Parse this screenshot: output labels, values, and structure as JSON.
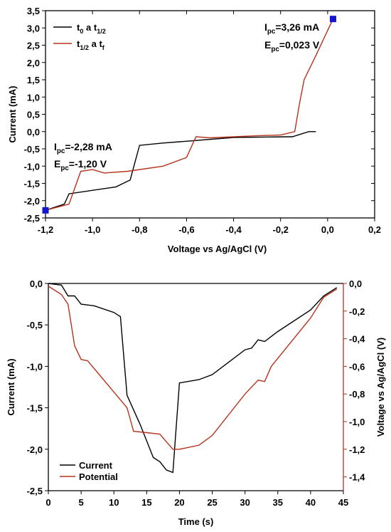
{
  "chart_data": [
    {
      "type": "line",
      "xlabel": "Voltage vs Ag/AgCl (V)",
      "ylabel": "Current (mA)",
      "xlim": [
        -1.2,
        0.2
      ],
      "ylim": [
        -2.5,
        3.5
      ],
      "xticks": [
        -1.2,
        -1.0,
        -0.8,
        -0.6,
        -0.4,
        -0.2,
        0.0,
        0.2
      ],
      "xtick_labels": [
        "-1,2",
        "-1,0",
        "-0,8",
        "-0,6",
        "-0,4",
        "-0,2",
        "0,0",
        "0,2"
      ],
      "yticks": [
        -2.5,
        -2.0,
        -1.5,
        -1.0,
        -0.5,
        0.0,
        0.5,
        1.0,
        1.5,
        2.0,
        2.5,
        3.0,
        3.5
      ],
      "ytick_labels": [
        "-2,5",
        "-2,0",
        "-1,5",
        "-1,0",
        "-0,5",
        "0,0",
        "0,5",
        "1,0",
        "1,5",
        "2,0",
        "2,5",
        "3,0",
        "3,5"
      ],
      "legend": [
        {
          "main": "t",
          "sub1": "0",
          "mid": " a t",
          "sub2": "1/2",
          "color": "#000000"
        },
        {
          "main": "t",
          "sub1": "1/2",
          "mid": " a t",
          "sub2": "f",
          "color": "#b5331a"
        }
      ],
      "series": [
        {
          "color": "#000000",
          "x": [
            -0.05,
            -0.08,
            -0.15,
            -0.4,
            -0.6,
            -0.7,
            -0.8,
            -0.84,
            -0.9,
            -1.1,
            -1.12,
            -1.2
          ],
          "y": [
            0.0,
            0.0,
            -0.15,
            -0.17,
            -0.28,
            -0.33,
            -0.4,
            -1.4,
            -1.6,
            -1.8,
            -2.1,
            -2.28
          ]
        },
        {
          "color": "#b5331a",
          "x": [
            -1.2,
            -1.1,
            -1.05,
            -1.0,
            -0.95,
            -0.85,
            -0.7,
            -0.6,
            -0.56,
            -0.5,
            -0.3,
            -0.2,
            -0.14,
            -0.12,
            -0.1,
            -0.05,
            0.023
          ],
          "y": [
            -2.28,
            -2.1,
            -1.15,
            -1.1,
            -1.2,
            -1.15,
            -1.0,
            -0.75,
            -0.15,
            -0.18,
            -0.12,
            -0.1,
            0.0,
            0.8,
            1.5,
            2.2,
            3.26
          ]
        }
      ],
      "markers": [
        {
          "x": 0.023,
          "y": 3.26,
          "color": "#1515d0"
        },
        {
          "x": -1.2,
          "y": -2.28,
          "color": "#1515d0"
        }
      ],
      "annotations": [
        {
          "line1": {
            "main": "I",
            "sub": "pc",
            "rest": "=3,26 mA"
          },
          "line2": {
            "main": "E",
            "sub": "pc",
            "rest": "=0,023 V"
          }
        },
        {
          "line1": {
            "main": "I",
            "sub": "pc",
            "rest": "=-2,28 mA"
          },
          "line2": {
            "main": "E",
            "sub": "pc",
            "rest": "=-1,20 V"
          }
        }
      ]
    },
    {
      "type": "line",
      "xlabel": "Time (s)",
      "ylabel": "Current (mA)",
      "y2label": "Voltage vs Ag/AgCl (V)",
      "xlim": [
        0,
        45
      ],
      "ylim": [
        -2.5,
        0.0
      ],
      "y2lim": [
        -1.5,
        0.0
      ],
      "xticks": [
        0,
        5,
        10,
        15,
        20,
        25,
        30,
        35,
        40,
        45
      ],
      "xtick_labels": [
        "0",
        "5",
        "10",
        "15",
        "20",
        "25",
        "30",
        "35",
        "40",
        "45"
      ],
      "yticks": [
        0.0,
        -0.5,
        -1.0,
        -1.5,
        -2.0,
        -2.5
      ],
      "ytick_labels": [
        "0,0",
        "-0,5",
        "-1,0",
        "-1,5",
        "-2,0",
        "-2,5"
      ],
      "y2ticks": [
        0.0,
        -0.2,
        -0.4,
        -0.6,
        -0.8,
        -1.0,
        -1.2,
        -1.4
      ],
      "y2tick_labels": [
        "0,0",
        "-0,2",
        "-0,4",
        "-0,6",
        "-0,8",
        "-1,0",
        "-1,2",
        "-1,4"
      ],
      "legend": [
        {
          "label": "Current",
          "color": "#000000"
        },
        {
          "label": "Potential",
          "color": "#b5331a"
        }
      ],
      "series": [
        {
          "name": "Current",
          "axis": "left",
          "color": "#000000",
          "x": [
            0,
            2,
            3,
            4,
            5,
            7,
            10,
            11,
            12,
            14,
            16,
            17,
            18,
            19,
            20,
            23,
            25,
            30,
            31,
            32,
            33,
            35,
            40,
            42,
            44
          ],
          "y": [
            0.0,
            -0.02,
            -0.15,
            -0.15,
            -0.25,
            -0.27,
            -0.35,
            -0.4,
            -1.35,
            -1.7,
            -2.1,
            -2.15,
            -2.25,
            -2.28,
            -1.2,
            -1.16,
            -1.1,
            -0.8,
            -0.78,
            -0.68,
            -0.7,
            -0.58,
            -0.32,
            -0.15,
            -0.05
          ]
        },
        {
          "name": "Potential",
          "axis": "right",
          "color": "#b5331a",
          "x": [
            0,
            2,
            3,
            4,
            5,
            6,
            9,
            12,
            13,
            15,
            17,
            19,
            20,
            21,
            23,
            25,
            30,
            32,
            33,
            34,
            40,
            42,
            44
          ],
          "y": [
            -0.02,
            -0.08,
            -0.15,
            -0.45,
            -0.55,
            -0.56,
            -0.73,
            -0.9,
            -1.07,
            -1.08,
            -1.09,
            -1.2,
            -1.2,
            -1.19,
            -1.17,
            -1.1,
            -0.8,
            -0.7,
            -0.71,
            -0.6,
            -0.25,
            -0.1,
            -0.04
          ]
        }
      ]
    }
  ]
}
